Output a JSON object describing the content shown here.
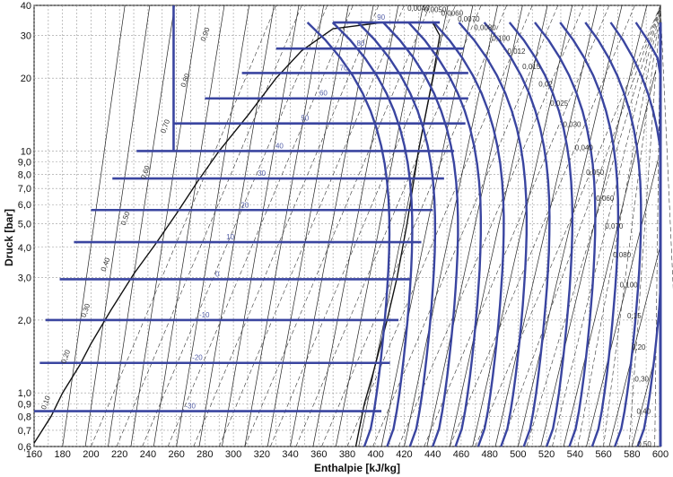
{
  "chart_data": {
    "type": "line",
    "title": "",
    "xlabel": "Enthalpie [kJ/kg]",
    "ylabel": "Druck [bar]",
    "xlim": [
      160,
      600
    ],
    "ylim": [
      0.6,
      40
    ],
    "yscale": "log",
    "grid": true,
    "x_ticks": [
      "160",
      "180",
      "200",
      "220",
      "240",
      "260",
      "280",
      "300",
      "320",
      "340",
      "360",
      "380",
      "400",
      "420",
      "440",
      "460",
      "480",
      "500",
      "520",
      "540",
      "560",
      "580",
      "600"
    ],
    "y_ticks": [
      {
        "v": 0.6,
        "label": "0,6"
      },
      {
        "v": 0.7,
        "label": "0,7"
      },
      {
        "v": 0.8,
        "label": "0,8"
      },
      {
        "v": 0.9,
        "label": "0,9"
      },
      {
        "v": 1.0,
        "label": "1,0"
      },
      {
        "v": 2.0,
        "label": "2,0"
      },
      {
        "v": 3.0,
        "label": "3,0"
      },
      {
        "v": 4.0,
        "label": "4,0"
      },
      {
        "v": 5.0,
        "label": "5,0"
      },
      {
        "v": 6.0,
        "label": "6,0"
      },
      {
        "v": 7.0,
        "label": "7,0"
      },
      {
        "v": 8.0,
        "label": "8,0"
      },
      {
        "v": 9.0,
        "label": "9,0"
      },
      {
        "v": 10,
        "label": "10"
      },
      {
        "v": 20,
        "label": "20"
      },
      {
        "v": 30,
        "label": "30"
      },
      {
        "v": 40,
        "label": "40"
      }
    ],
    "saturation_dome": {
      "liquid_line": [
        [
          160,
          0.62
        ],
        [
          172,
          0.8
        ],
        [
          180,
          1.0
        ],
        [
          192,
          1.3
        ],
        [
          200,
          1.6
        ],
        [
          214,
          2.2
        ],
        [
          230,
          3.1
        ],
        [
          245,
          4.1
        ],
        [
          260,
          5.5
        ],
        [
          275,
          7.5
        ],
        [
          290,
          10
        ],
        [
          310,
          14
        ],
        [
          330,
          20
        ],
        [
          348,
          26
        ],
        [
          370,
          32
        ],
        [
          405,
          34
        ],
        [
          440,
          34
        ]
      ],
      "vapour_line": [
        [
          440,
          34
        ],
        [
          445,
          30
        ],
        [
          440,
          20
        ],
        [
          430,
          10
        ],
        [
          422,
          5
        ],
        [
          415,
          3
        ],
        [
          408,
          2
        ],
        [
          398,
          1.2
        ],
        [
          392,
          0.9
        ],
        [
          386,
          0.6
        ]
      ]
    },
    "isotherms": [
      {
        "label": "90",
        "p": 34,
        "h_liq": 370,
        "h_vap": 445
      },
      {
        "label": "80",
        "p": 26.5,
        "h_liq": 330,
        "h_vap": 462
      },
      {
        "label": "70",
        "p": 21,
        "h_liq": 306,
        "h_vap": 465
      },
      {
        "label": "60",
        "p": 16.5,
        "h_liq": 280,
        "h_vap": 465
      },
      {
        "label": "50",
        "p": 13,
        "h_liq": 258,
        "h_vap": 463
      },
      {
        "label": "40",
        "p": 10,
        "h_liq": 232,
        "h_vap": 455
      },
      {
        "label": "30",
        "p": 7.7,
        "h_liq": 215,
        "h_vap": 448
      },
      {
        "label": "20",
        "p": 5.7,
        "h_liq": 200,
        "h_vap": 440
      },
      {
        "label": "10",
        "p": 4.2,
        "h_liq": 188,
        "h_vap": 432
      },
      {
        "label": "0",
        "p": 2.95,
        "h_liq": 178,
        "h_vap": 424
      },
      {
        "label": "-10",
        "p": 2.0,
        "h_liq": 168,
        "h_vap": 416
      },
      {
        "label": "-20",
        "p": 1.33,
        "h_liq": 164,
        "h_vap": 410
      },
      {
        "label": "-30",
        "p": 0.84,
        "h_liq": 160,
        "h_vap": 404
      }
    ],
    "isochore_labels": [
      "0,0040",
      "0,0050",
      "0,0060",
      "0,0070",
      "0,0080",
      "0,100",
      "0,012",
      "0,015",
      "0,02",
      "0,025",
      "0,030",
      "0,040",
      "0,050",
      "0,060",
      "0,070",
      "0,080",
      "0,100",
      "0,15",
      "0,20",
      "0,30",
      "0,40",
      "0,50"
    ],
    "quality_labels": [
      "0,10",
      "0,20",
      "0,30",
      "0,40",
      "0,50",
      "0,60",
      "0,70",
      "0,80",
      "0,90"
    ],
    "vertical_line": {
      "h": 258,
      "p_from": 10,
      "p_to": 40
    }
  }
}
